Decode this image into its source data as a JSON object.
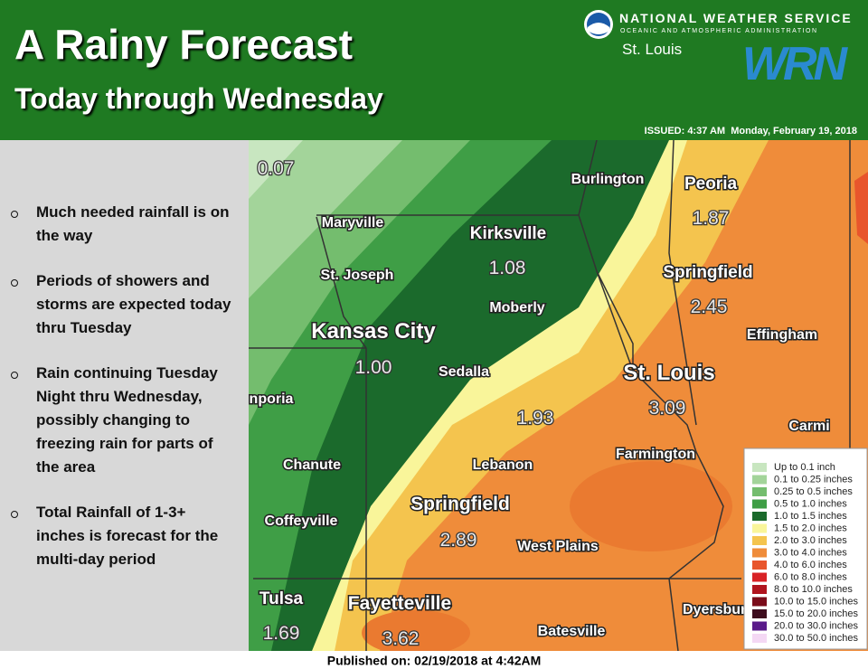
{
  "header": {
    "title": "A Rainy Forecast",
    "subtitle": "Today through Wednesday",
    "agency": "NATIONAL WEATHER SERVICE",
    "agency_sub": "OCEANIC AND ATMOSPHERIC ADMINISTRATION",
    "office": "St. Louis",
    "logo": "WRN",
    "issued": "ISSUED: 4:37 AM  Monday, February 19, 2018"
  },
  "bullets": [
    "Much needed rainfall is on the way",
    "Periods of showers and storms are expected today thru Tuesday",
    "Rain continuing Tuesday Night thru Wednesday, possibly changing to freezing rain for parts of the area",
    "Total Rainfall of 1-3+ inches is forecast for the multi-day period"
  ],
  "map": {
    "cities": [
      "Burlington",
      "Peoria",
      "Maryville",
      "Kirksville",
      "St. Joseph",
      "Springfield",
      "Moberly",
      "Kansas City",
      "Effingham",
      "Sedalla",
      "St. Louis",
      "nporia",
      "Carmi",
      "Farmington",
      "Chanute",
      "Lebanon",
      "Springfield",
      "Coffeyville",
      "West Plains",
      "Tulsa",
      "Fayetteville",
      "Dyersburg",
      "Batesville"
    ],
    "amounts": [
      "0.07",
      "1.87",
      "1.08",
      "2.45",
      "1.00",
      "1.93",
      "3.09",
      "2.89",
      "1.69",
      "3.62"
    ]
  },
  "legend": [
    {
      "label": "Up to 0.1 inch",
      "color": "#c8e6c0"
    },
    {
      "label": "0.1 to 0.25 inches",
      "color": "#a3d49a"
    },
    {
      "label": "0.25 to 0.5 inches",
      "color": "#74bd6e"
    },
    {
      "label": "0.5 to 1.0 inches",
      "color": "#3f9e46"
    },
    {
      "label": "1.0 to 1.5 inches",
      "color": "#1b6a2c"
    },
    {
      "label": "1.5 to 2.0 inches",
      "color": "#f9f59a"
    },
    {
      "label": "2.0 to 3.0 inches",
      "color": "#f4c44e"
    },
    {
      "label": "3.0 to 4.0 inches",
      "color": "#ef8c3a"
    },
    {
      "label": "4.0 to 6.0 inches",
      "color": "#e8552c"
    },
    {
      "label": "6.0 to 8.0 inches",
      "color": "#d82226"
    },
    {
      "label": "8.0 to 10.0 inches",
      "color": "#b0141e"
    },
    {
      "label": "10.0 to 15.0 inches",
      "color": "#7a0c1a"
    },
    {
      "label": "15.0 to 20.0 inches",
      "color": "#3e0d1e"
    },
    {
      "label": "20.0 to 30.0 inches",
      "color": "#5a1a8a"
    },
    {
      "label": "30.0 to 50.0 inches",
      "color": "#f4d8f4"
    }
  ],
  "footer": "Published on: 02/19/2018 at 4:42AM"
}
